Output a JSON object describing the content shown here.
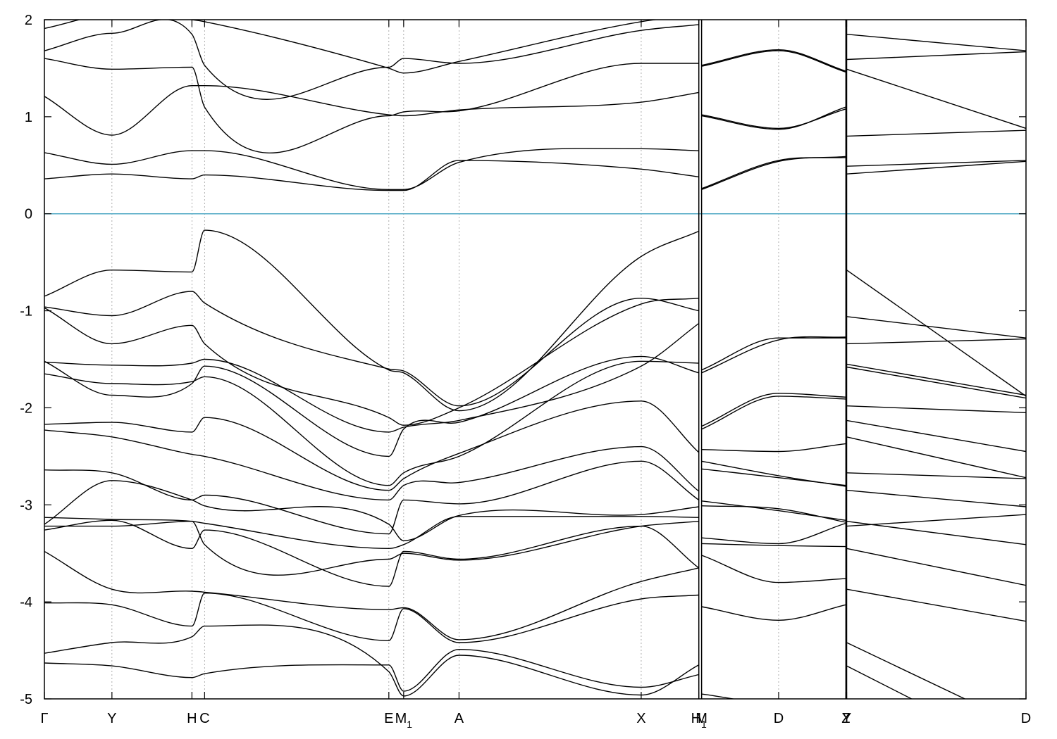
{
  "chart_data": {
    "type": "line",
    "title": "",
    "xlabel": "",
    "ylabel": "",
    "ylim": [
      -5,
      2
    ],
    "yticks": [
      2,
      1,
      0,
      -1,
      -2,
      -3,
      -4,
      -5
    ],
    "ytick_labels": [
      "2",
      "1",
      "0",
      "-1",
      "-2",
      "-3",
      "-4",
      "-5"
    ],
    "grid": "vertical dotted lines at high-symmetry points",
    "fermi_level": 0,
    "fermi_color": "#4fa8c4",
    "line_color": "#000000",
    "kpoints": [
      {
        "label": "Γ",
        "sub": "",
        "x": 0.0
      },
      {
        "label": "Y",
        "sub": "",
        "x": 0.0688
      },
      {
        "label": "H",
        "sub": "",
        "x": 0.1503
      },
      {
        "label": "C",
        "sub": "",
        "x": 0.1632
      },
      {
        "label": "E",
        "sub": "",
        "x": 0.3509
      },
      {
        "label": "M",
        "sub": "1",
        "x": 0.366
      },
      {
        "label": "A",
        "sub": "",
        "x": 0.4224
      },
      {
        "label": "X",
        "sub": "",
        "x": 0.608
      },
      {
        "label": "H",
        "sub": "1",
        "x": 0.6667
      },
      {
        "label": "M",
        "sub": "",
        "x": 0.6695
      },
      {
        "label": "D",
        "sub": "",
        "x": 0.748
      },
      {
        "label": "Z",
        "sub": "",
        "x": 0.8165
      },
      {
        "label": "Y",
        "sub": "",
        "x": 0.8173
      },
      {
        "label": "D",
        "sub": "",
        "x": 1.0
      }
    ],
    "segments": [
      {
        "x0": 0.0,
        "x1": 0.6667,
        "breaks": [
          0.0,
          0.0688,
          0.1503,
          0.1632,
          0.3509,
          0.366,
          0.4224,
          0.608,
          0.6667
        ],
        "bands": [
          [
            -4.53,
            -4.42,
            -4.36,
            -4.25,
            -4.72,
            -4.97,
            -4.55,
            -4.96,
            -4.65
          ],
          [
            -4.63,
            -4.66,
            -4.78,
            -4.74,
            -4.65,
            -4.92,
            -4.49,
            -4.88,
            -4.75
          ],
          [
            -4.01,
            -4.03,
            -4.25,
            -3.91,
            -4.4,
            -4.07,
            -4.42,
            -3.97,
            -3.93
          ],
          [
            -3.48,
            -3.87,
            -3.89,
            -3.9,
            -4.08,
            -4.06,
            -4.39,
            -3.79,
            -3.65
          ],
          [
            -3.26,
            -3.16,
            -3.45,
            -3.26,
            -3.84,
            -3.48,
            -3.56,
            -3.22,
            -3.65
          ],
          [
            -3.22,
            -3.22,
            -3.17,
            -3.41,
            -3.56,
            -3.5,
            -3.57,
            -3.22,
            -3.17
          ],
          [
            -3.13,
            -3.15,
            -3.17,
            -3.19,
            -3.45,
            -3.41,
            -3.12,
            -3.12,
            -3.13
          ],
          [
            -3.2,
            -2.75,
            -2.95,
            -3.01,
            -3.2,
            -3.37,
            -3.11,
            -3.1,
            -3.02
          ],
          [
            -2.64,
            -2.67,
            -2.95,
            -2.9,
            -3.3,
            -2.95,
            -2.99,
            -2.55,
            -2.95
          ],
          [
            -2.23,
            -2.3,
            -2.48,
            -2.5,
            -2.95,
            -2.8,
            -2.77,
            -2.4,
            -2.86
          ],
          [
            -2.17,
            -2.15,
            -2.25,
            -2.1,
            -2.85,
            -2.73,
            -2.47,
            -1.93,
            -2.46
          ],
          [
            -1.65,
            -1.75,
            -1.73,
            -1.68,
            -2.8,
            -2.67,
            -2.5,
            -1.52,
            -1.54
          ],
          [
            -1.52,
            -1.87,
            -1.75,
            -1.57,
            -2.5,
            -2.22,
            -2.15,
            -1.47,
            -1.64
          ],
          [
            -1.53,
            -1.56,
            -1.54,
            -1.5,
            -2.25,
            -2.2,
            -2.13,
            -1.57,
            -1.13
          ],
          [
            -0.97,
            -1.34,
            -1.15,
            -1.34,
            -2.1,
            -2.18,
            -2.0,
            -0.93,
            -0.87
          ],
          [
            -0.96,
            -1.05,
            -0.8,
            -0.92,
            -1.6,
            -1.62,
            -1.98,
            -0.87,
            -1.0
          ],
          [
            -0.85,
            -0.58,
            -0.6,
            -0.17,
            -1.61,
            -1.64,
            -2.03,
            -0.44,
            -0.18
          ],
          [
            0.36,
            0.41,
            0.36,
            0.4,
            0.24,
            0.24,
            0.55,
            0.46,
            0.38
          ],
          [
            0.63,
            0.51,
            0.65,
            0.65,
            0.25,
            0.25,
            0.53,
            0.67,
            0.65
          ],
          [
            1.21,
            0.81,
            1.32,
            1.32,
            1.02,
            1.01,
            1.07,
            1.15,
            1.25
          ],
          [
            1.6,
            1.49,
            1.51,
            1.1,
            1.01,
            1.05,
            1.06,
            1.55,
            1.55
          ],
          [
            1.68,
            1.86,
            1.85,
            1.53,
            1.51,
            1.6,
            1.55,
            1.89,
            1.95
          ],
          [
            1.91,
            2.05,
            2.0,
            1.98,
            1.5,
            1.45,
            1.57,
            1.98,
            2.05
          ]
        ]
      },
      {
        "x0": 0.6695,
        "x1": 0.8165,
        "breaks": [
          0.6695,
          0.748,
          0.8165
        ],
        "bands": [
          [
            -4.95,
            -5.05,
            -5.05
          ],
          [
            -4.05,
            -4.19,
            -4.03
          ],
          [
            -3.52,
            -3.8,
            -3.76
          ],
          [
            -3.4,
            -3.42,
            -3.43
          ],
          [
            -3.34,
            -3.4,
            -3.19
          ],
          [
            -3.01,
            -3.04,
            -3.18
          ],
          [
            -2.96,
            -3.06,
            -3.16
          ],
          [
            -2.63,
            -2.72,
            -2.8
          ],
          [
            -2.55,
            -2.7,
            -2.81
          ],
          [
            -2.43,
            -2.45,
            -2.37
          ],
          [
            -2.22,
            -1.88,
            -1.91
          ],
          [
            -2.19,
            -1.85,
            -1.89
          ],
          [
            -1.64,
            -1.3,
            -1.27
          ],
          [
            -1.61,
            -1.28,
            -1.28
          ],
          [
            0.25,
            0.54,
            0.59
          ],
          [
            0.26,
            0.55,
            0.58
          ],
          [
            1.01,
            0.87,
            1.1
          ],
          [
            1.02,
            0.88,
            1.08
          ],
          [
            1.52,
            1.68,
            1.46
          ],
          [
            1.53,
            1.69,
            1.47
          ]
        ]
      },
      {
        "x0": 0.8173,
        "x1": 1.0,
        "breaks": [
          0.8173,
          1.0
        ],
        "bands": [
          [
            -4.66,
            -5.6
          ],
          [
            -4.42,
            -5.3
          ],
          [
            -3.87,
            -4.2
          ],
          [
            -3.45,
            -3.83
          ],
          [
            -3.17,
            -3.41
          ],
          [
            -3.22,
            -3.1
          ],
          [
            -2.85,
            -3.02
          ],
          [
            -2.67,
            -2.73
          ],
          [
            -2.3,
            -2.72
          ],
          [
            -2.13,
            -2.45
          ],
          [
            -1.98,
            -2.05
          ],
          [
            -1.58,
            -1.9
          ],
          [
            -1.55,
            -1.87
          ],
          [
            -1.34,
            -1.29
          ],
          [
            -1.06,
            -1.28
          ],
          [
            -0.58,
            -1.88
          ],
          [
            0.41,
            0.54
          ],
          [
            0.49,
            0.55
          ],
          [
            0.8,
            0.86
          ],
          [
            1.49,
            0.88
          ],
          [
            1.59,
            1.67
          ],
          [
            1.85,
            1.68
          ],
          [
            2.05,
            2.15
          ]
        ]
      }
    ]
  }
}
